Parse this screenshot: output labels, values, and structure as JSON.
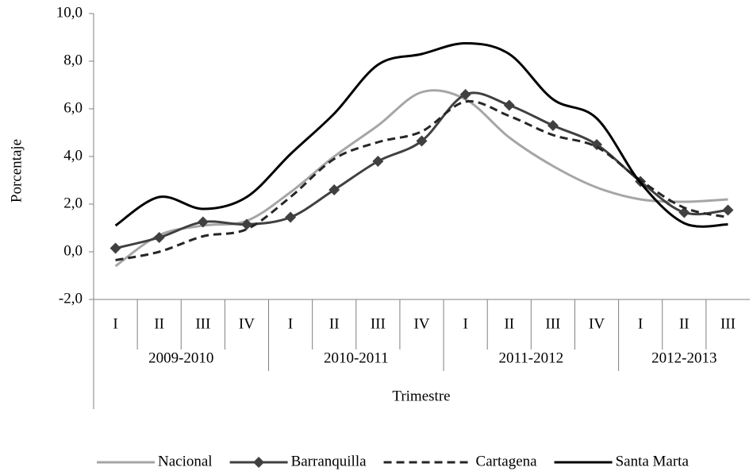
{
  "chart_data": {
    "type": "line",
    "y_label": "Porcentaje",
    "x_label": "Trimestre",
    "groups": [
      {
        "label": "2009-2010",
        "categories": [
          "I",
          "II",
          "III",
          "IV"
        ]
      },
      {
        "label": "2010-2011",
        "categories": [
          "I",
          "II",
          "III",
          "IV"
        ]
      },
      {
        "label": "2011-2012",
        "categories": [
          "I",
          "II",
          "III",
          "IV"
        ]
      },
      {
        "label": "2012-2013",
        "categories": [
          "I",
          "II",
          "III"
        ]
      }
    ],
    "series": [
      {
        "name": "Nacional",
        "color": "#a6a6a6",
        "dashed": false,
        "marker": "none",
        "values": [
          -0.6,
          0.7,
          1.1,
          1.3,
          2.5,
          4.0,
          5.3,
          6.7,
          6.4,
          4.8,
          3.6,
          2.7,
          2.2,
          2.1,
          2.2
        ]
      },
      {
        "name": "Barranquilla",
        "color": "#404040",
        "dashed": false,
        "marker": "diamond",
        "values": [
          0.15,
          0.6,
          1.25,
          1.15,
          1.45,
          2.6,
          3.8,
          4.65,
          6.6,
          6.15,
          5.3,
          4.5,
          2.95,
          1.65,
          1.75
        ]
      },
      {
        "name": "Cartagena",
        "color": "#262626",
        "dashed": true,
        "marker": "none",
        "values": [
          -0.35,
          0.0,
          0.65,
          0.95,
          2.3,
          3.9,
          4.6,
          5.05,
          6.3,
          5.7,
          4.9,
          4.4,
          3.0,
          1.85,
          1.45
        ]
      },
      {
        "name": "Santa Marta",
        "color": "#000000",
        "dashed": false,
        "marker": "none",
        "values": [
          1.1,
          2.3,
          1.8,
          2.3,
          4.1,
          5.8,
          7.85,
          8.3,
          8.75,
          8.3,
          6.4,
          5.6,
          2.9,
          1.2,
          1.15
        ]
      }
    ],
    "ylim": [
      -2,
      10
    ],
    "yticks": [
      {
        "value": -2,
        "label": "-2,0"
      },
      {
        "value": 0,
        "label": "0,0"
      },
      {
        "value": 2,
        "label": "2,0"
      },
      {
        "value": 4,
        "label": "4,0"
      },
      {
        "value": 6,
        "label": "6,0"
      },
      {
        "value": 8,
        "label": "8,0"
      },
      {
        "value": 10,
        "label": "10,0"
      }
    ],
    "smooth": true,
    "legend": "bottom"
  }
}
